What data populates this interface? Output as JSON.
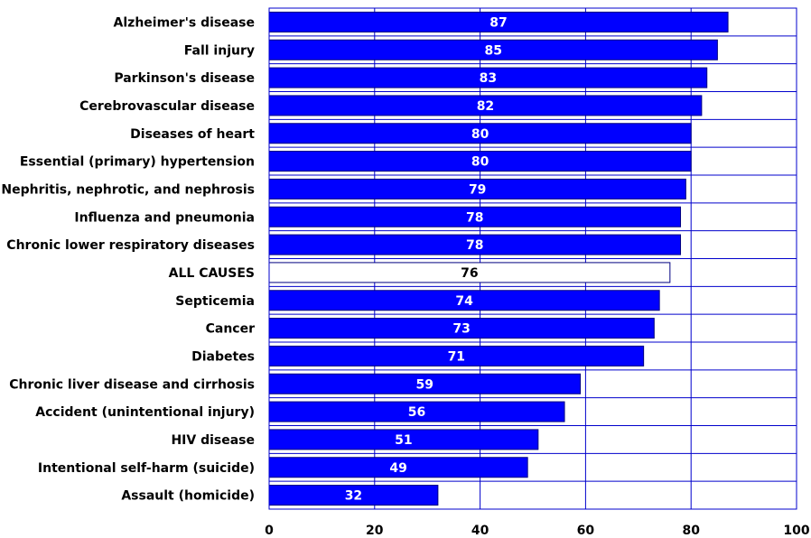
{
  "chart_data": {
    "type": "bar",
    "orientation": "horizontal",
    "categories": [
      "Alzheimer's disease",
      "Fall injury",
      "Parkinson's disease",
      "Cerebrovascular disease",
      "Diseases of heart",
      "Essential (primary) hypertension",
      "Nephritis, nephrotic, and nephrosis",
      "Influenza and pneumonia",
      "Chronic lower respiratory diseases",
      "ALL CAUSES",
      "Septicemia",
      "Cancer",
      "Diabetes",
      "Chronic liver disease and cirrhosis",
      "Accident (unintentional injury)",
      "HIV disease",
      "Intentional self-harm (suicide)",
      "Assault (homicide)"
    ],
    "values": [
      87,
      85,
      83,
      82,
      80,
      80,
      79,
      78,
      78,
      76,
      74,
      73,
      71,
      59,
      56,
      51,
      49,
      32
    ],
    "data_labels": [
      "87",
      "85",
      "83",
      "82",
      "80",
      "80",
      "79",
      "78",
      "78",
      "76",
      "74",
      "73",
      "71",
      "59",
      "56",
      "51",
      "49",
      "32"
    ],
    "highlight_category": "ALL CAUSES",
    "xlim": [
      0,
      100
    ],
    "xticks": [
      0,
      20,
      40,
      60,
      80,
      100
    ],
    "xtick_labels": [
      "0",
      "20",
      "40",
      "60",
      "80",
      "100"
    ],
    "grid": true,
    "grid_axis": "x",
    "legend": false,
    "title": "",
    "xlabel": "",
    "ylabel": "",
    "colors": {
      "bar_fill": "#0000FF",
      "bar_edge": "#000080",
      "highlight_fill": "#FFFFFF",
      "highlight_edge": "#000080",
      "value_text": "#FFFFFF",
      "highlight_value_text": "#000000",
      "frame": "#0000CC",
      "grid": "#0000CC"
    }
  }
}
